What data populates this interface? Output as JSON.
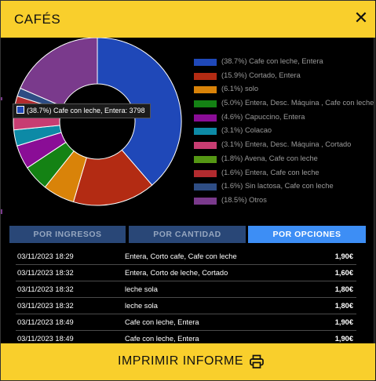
{
  "header": {
    "title": "CAFÉS",
    "close_glyph": "✕"
  },
  "chart_data": {
    "type": "pie",
    "variant": "donut",
    "labels": [
      "Cafe con leche, Entera",
      "Cortado, Entera",
      "solo",
      "Entera, Desc. Máquina , Cafe con leche",
      "Capuccino, Entera",
      "Colacao",
      "Entera, Desc. Máquina , Cortado",
      "Avena, Cafe con leche",
      "Entera, Cafe con leche",
      "Sin lactosa, Cafe con leche",
      "Otros"
    ],
    "values": [
      38.7,
      15.9,
      6.1,
      5.0,
      4.6,
      3.1,
      3.1,
      1.8,
      1.6,
      1.6,
      18.5
    ],
    "colors": [
      "#1f48b8",
      "#b32b13",
      "#d98309",
      "#148214",
      "#8a0d96",
      "#0d8aa6",
      "#c73d72",
      "#559714",
      "#b22b2f",
      "#2e4d84",
      "#7a3a8c"
    ],
    "legend_position": "right",
    "legend": [
      "(38.7%) Cafe con leche, Entera",
      "(15.9%) Cortado, Entera",
      "(6.1%) solo",
      "(5.0%) Entera, Desc. Máquina , Cafe con leche",
      "(4.6%) Capuccino, Entera",
      "(3.1%) Colacao",
      "(3.1%) Entera, Desc. Máquina , Cortado",
      "(1.8%) Avena, Cafe con leche",
      "(1.6%) Entera, Cafe con leche",
      "(1.6%) Sin lactosa, Cafe con leche",
      "(18.5%) Otros"
    ],
    "tooltip": "(38.7%) Cafe con leche, Entera: 3798"
  },
  "tabs": [
    {
      "label": "POR INGRESOS",
      "active": false
    },
    {
      "label": "POR CANTIDAD",
      "active": false
    },
    {
      "label": "POR OPCIONES",
      "active": true
    }
  ],
  "rows": [
    {
      "date": "03/11/2023 18:29",
      "desc": "Entera, Corto cafe, Cafe con leche",
      "price": "1,90€"
    },
    {
      "date": "03/11/2023 18:32",
      "desc": "Entera, Corto de leche, Cortado",
      "price": "1,60€"
    },
    {
      "date": "03/11/2023 18:32",
      "desc": "leche sola",
      "price": "1,80€"
    },
    {
      "date": "03/11/2023 18:32",
      "desc": "leche sola",
      "price": "1,80€"
    },
    {
      "date": "03/11/2023 18:49",
      "desc": "Cafe con leche, Entera",
      "price": "1,90€"
    },
    {
      "date": "03/11/2023 18:49",
      "desc": "Cafe con leche, Entera",
      "price": "1,90€"
    }
  ],
  "footer": {
    "label": "IMPRIMIR INFORME",
    "icon": "printer-icon"
  },
  "theme": {
    "accent": "#f9cf2c",
    "tab_bg": "#294777",
    "tab_active_bg": "#3d8ef5",
    "tab_text": "#95a6bf"
  }
}
